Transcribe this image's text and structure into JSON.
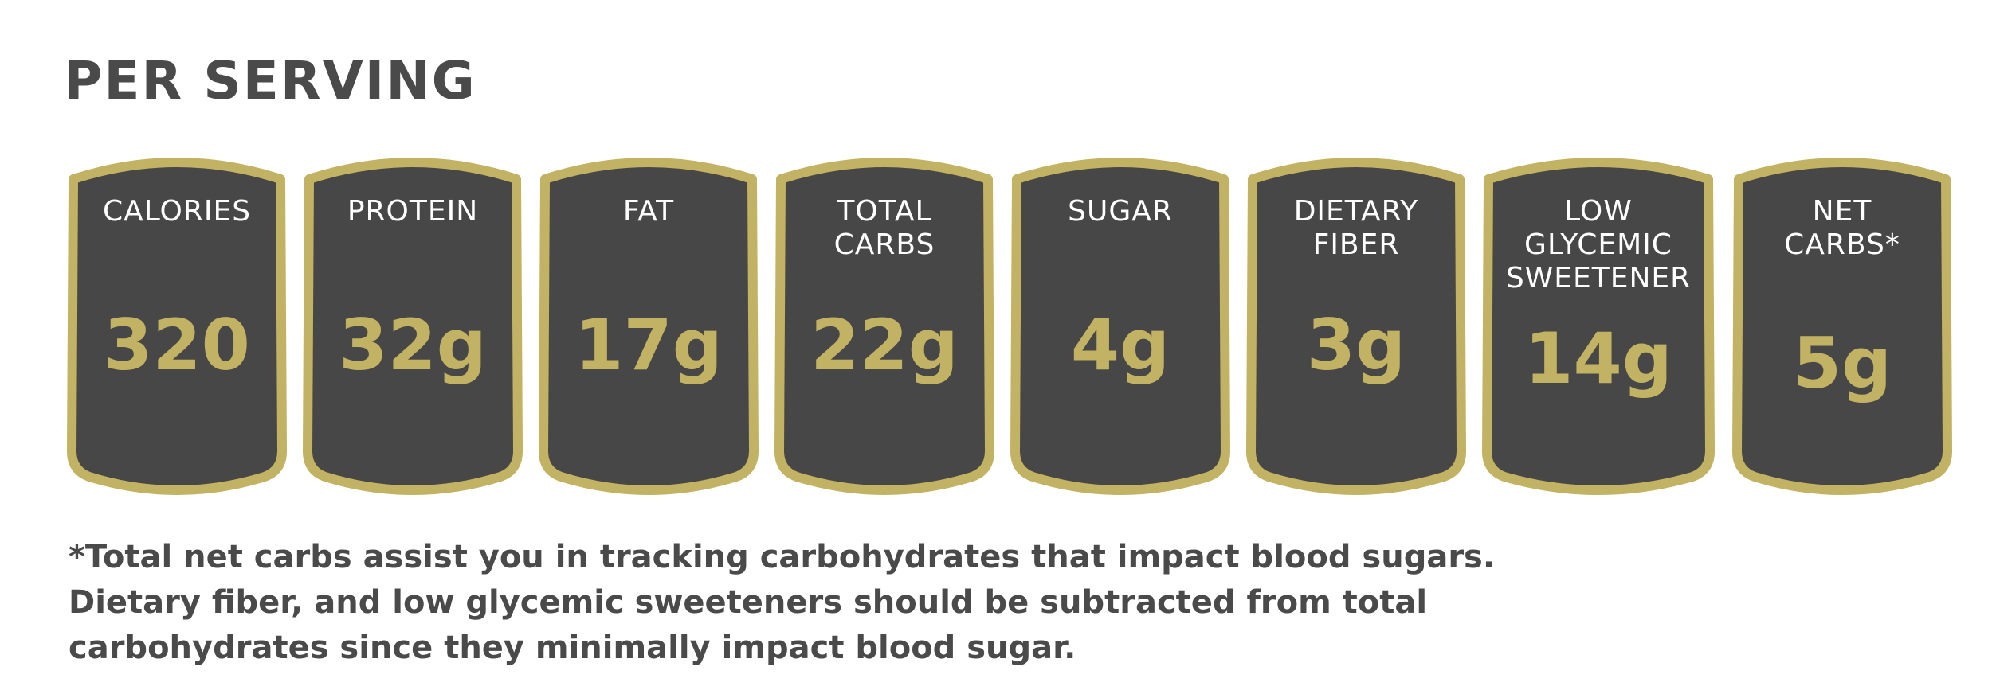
{
  "heading": "PER SERVING",
  "colors": {
    "panel_fill": "#474747",
    "panel_border": "#c2b263",
    "value_text": "#c2b263",
    "label_text": "#ffffff",
    "heading_text": "#4a4a4a"
  },
  "panels": [
    {
      "label": "CALORIES",
      "value": "320"
    },
    {
      "label": "PROTEIN",
      "value": "32g"
    },
    {
      "label": "FAT",
      "value": "17g"
    },
    {
      "label": "TOTAL\nCARBS",
      "value": "22g"
    },
    {
      "label": "SUGAR",
      "value": "4g"
    },
    {
      "label": "DIETARY\nFIBER",
      "value": "3g"
    },
    {
      "label": "LOW\nGLYCEMIC\nSWEETENER",
      "value": "14g"
    },
    {
      "label": "NET\nCARBS*",
      "value": "5g"
    }
  ],
  "footnote": {
    "lines": [
      "*Total net carbs assist you in tracking carbohydrates that impact blood sugars.",
      "Dietary fiber, and low glycemic sweeteners should be subtracted from total",
      "carbohydrates since they minimally impact blood sugar."
    ]
  }
}
